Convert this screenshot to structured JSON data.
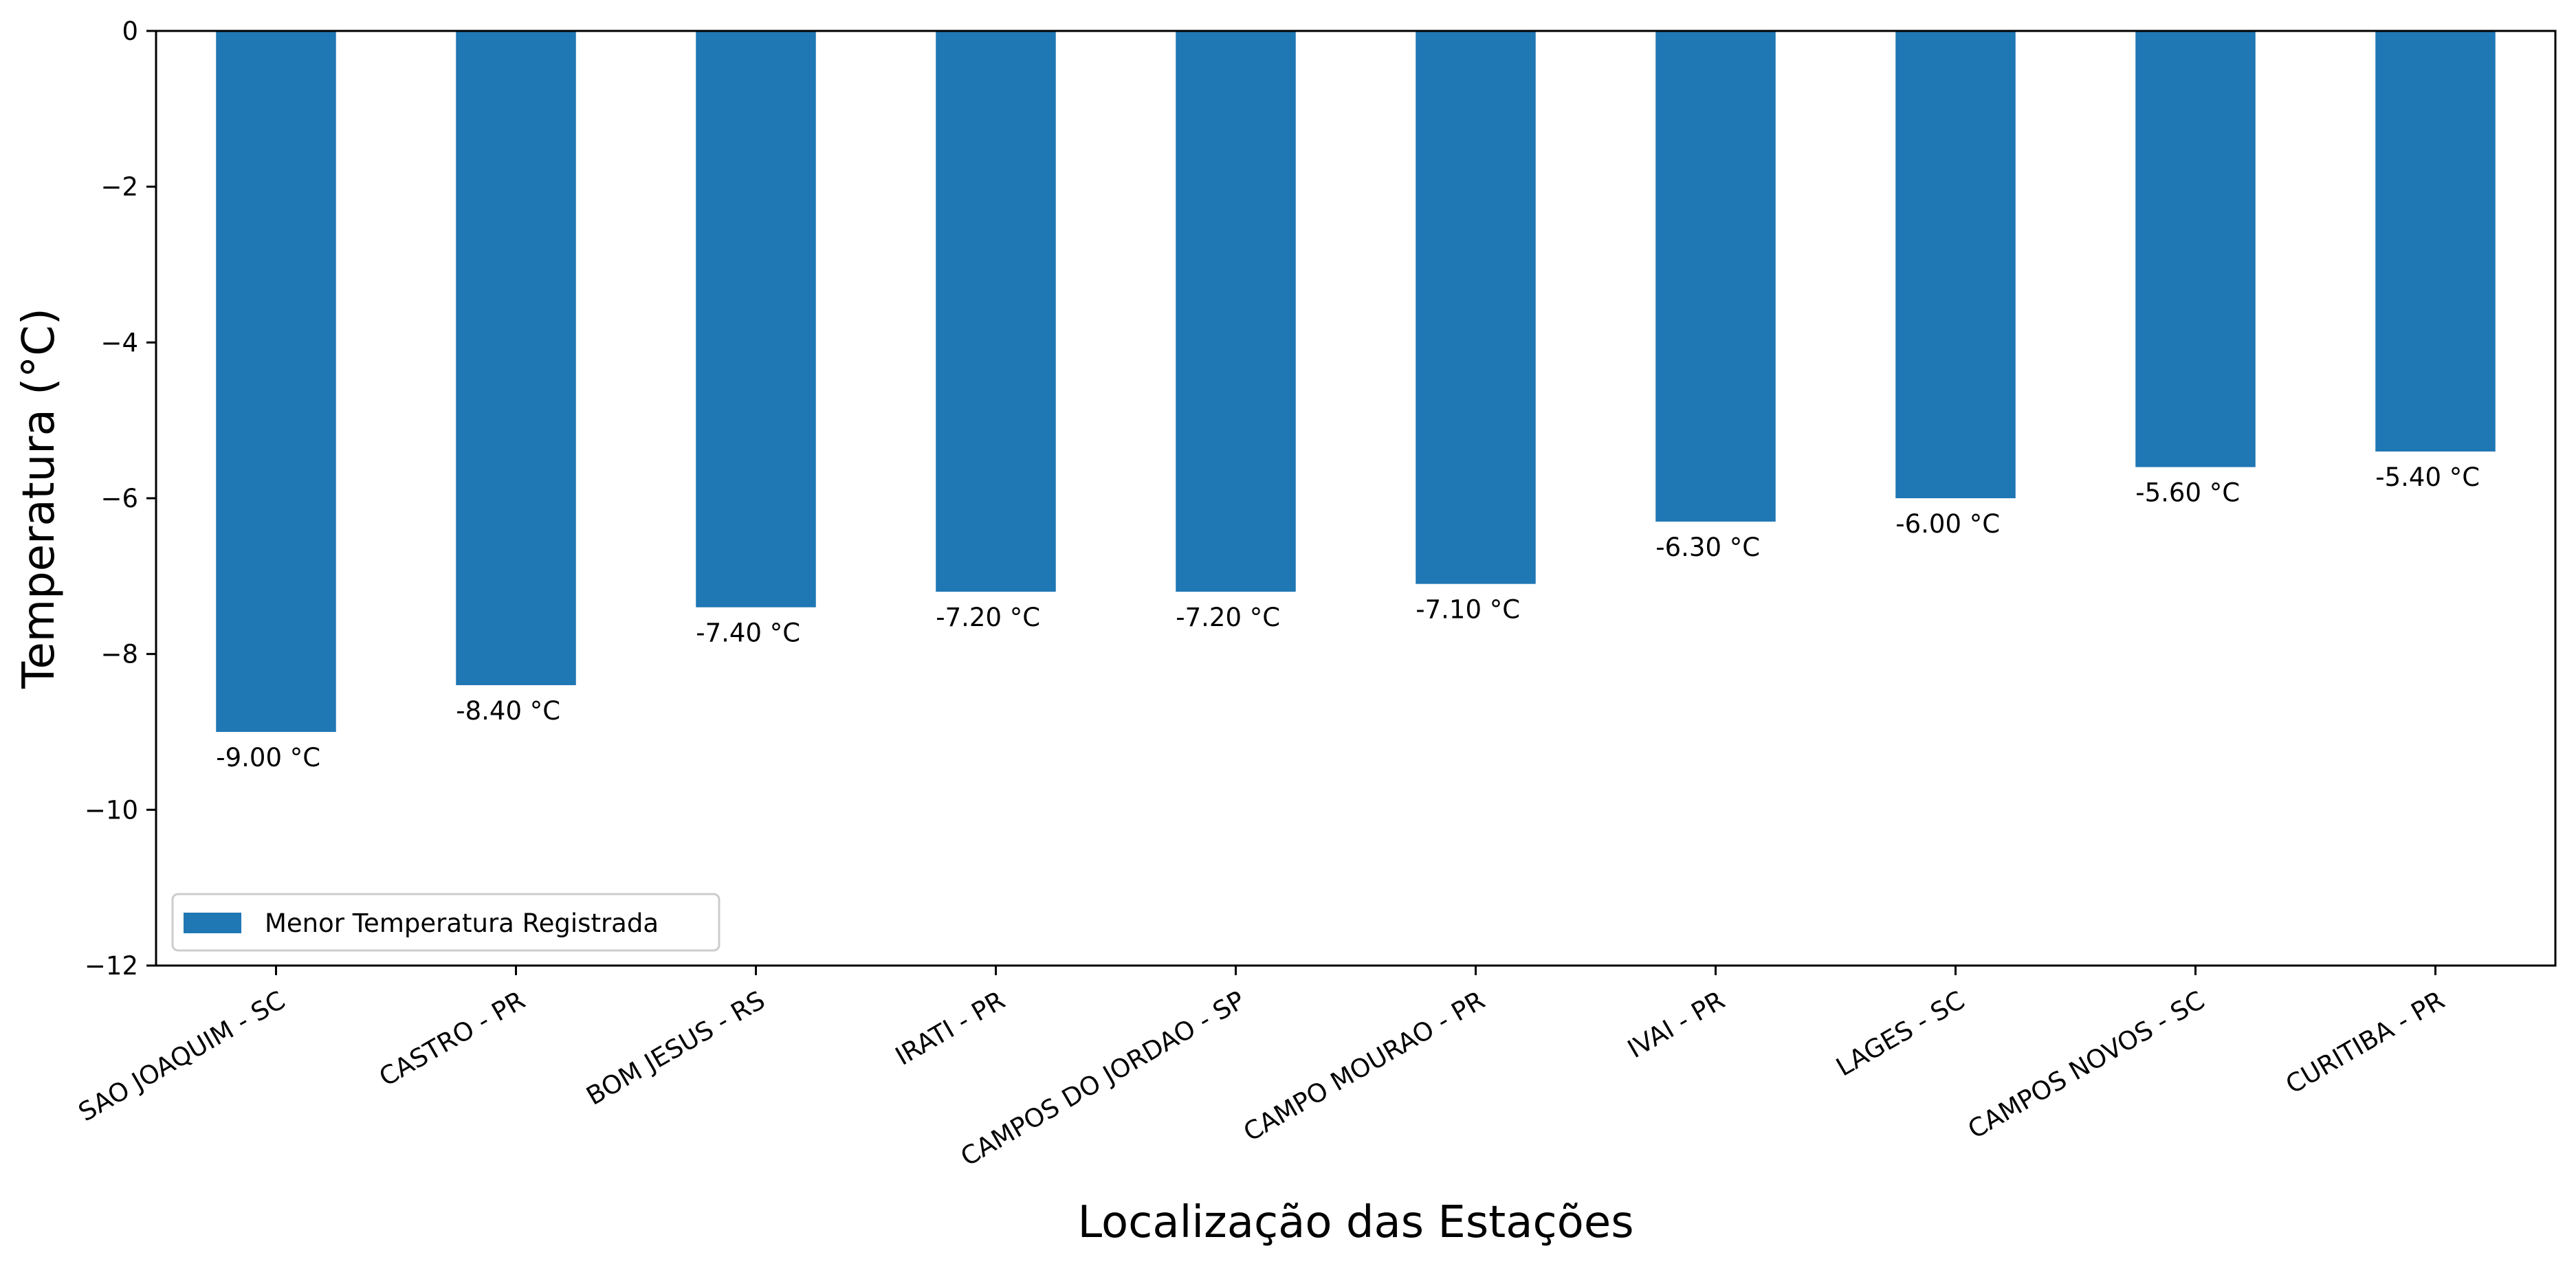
{
  "chart_data": {
    "type": "bar",
    "xlabel": "Localização das Estações",
    "ylabel": "Temperatura (°C)",
    "ylim": [
      -12,
      0
    ],
    "yticks": [
      0,
      -2,
      -4,
      -6,
      -8,
      -10,
      -12
    ],
    "ytick_labels": [
      "0",
      "−2",
      "−4",
      "−6",
      "−8",
      "−10",
      "−12"
    ],
    "categories": [
      "SAO JOAQUIM - SC",
      "CASTRO - PR",
      "BOM JESUS - RS",
      "IRATI - PR",
      "CAMPOS DO JORDAO - SP",
      "CAMPO MOURAO - PR",
      "IVAI - PR",
      "LAGES - SC",
      "CAMPOS NOVOS - SC",
      "CURITIBA - PR"
    ],
    "series": [
      {
        "name": "Menor Temperatura Registrada",
        "values": [
          -9.0,
          -8.4,
          -7.4,
          -7.2,
          -7.2,
          -7.1,
          -6.3,
          -6.0,
          -5.6,
          -5.4
        ],
        "labels": [
          "-9.00 °C",
          "-8.40 °C",
          "-7.40 °C",
          "-7.20 °C",
          "-7.20 °C",
          "-7.10 °C",
          "-6.30 °C",
          "-6.00 °C",
          "-5.60 °C",
          "-5.40 °C"
        ]
      }
    ],
    "bar_color": "#1f77b4",
    "grid": false,
    "legend_position": "lower-left"
  }
}
